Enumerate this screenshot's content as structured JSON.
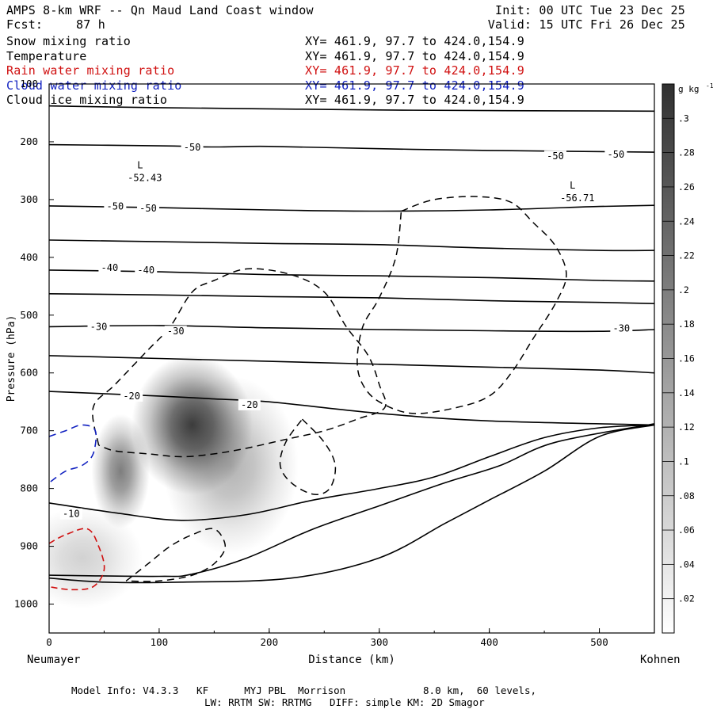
{
  "header": {
    "title": "AMPS 8-km WRF -- Qn Maud Land Coast window",
    "fcst_label": "Fcst:",
    "fcst_value": "87 h",
    "init": "Init: 00 UTC Tue 23 Dec 25",
    "valid": "Valid: 15 UTC Fri 26 Dec 25"
  },
  "fields": [
    {
      "name": "Snow mixing ratio",
      "xy": "XY= 461.9, 97.7 to 424.0,154.9",
      "color": "#000000"
    },
    {
      "name": "Temperature",
      "xy": "XY= 461.9, 97.7 to 424.0,154.9",
      "color": "#000000"
    },
    {
      "name": "Rain water mixing ratio",
      "xy": "XY= 461.9, 97.7 to 424.0,154.9",
      "color": "#d01010"
    },
    {
      "name": "Cloud water mixing ratio",
      "xy": "XY= 461.9, 97.7 to 424.0,154.9",
      "color": "#1020c0"
    },
    {
      "name": "Cloud ice mixing ratio",
      "xy": "XY= 461.9, 97.7 to 424.0,154.9",
      "color": "#000000"
    }
  ],
  "footer": {
    "line1": "Model Info: V4.3.3   KF      MYJ PBL  Morrison             8.0 km,  60 levels,",
    "line2": "LW: RRTM SW: RRTMG   DIFF: simple KM: 2D Smagor"
  },
  "chart_data": {
    "type": "heatmap",
    "xlabel": "Distance (km)",
    "ylabel": "Pressure (hPa)",
    "x_left_label": "Neumayer",
    "x_right_label": "Kohnen",
    "xlim": [
      0,
      550
    ],
    "ylim": [
      1050,
      100
    ],
    "x_ticks": [
      0,
      100,
      200,
      300,
      400,
      500
    ],
    "y_ticks": [
      100,
      200,
      300,
      400,
      500,
      600,
      700,
      800,
      900,
      1000
    ],
    "colorbar": {
      "unit": "g kg",
      "unit_exp": "-1",
      "ticks": [
        ".02",
        ".04",
        ".06",
        ".08",
        ".1",
        ".12",
        ".14",
        ".16",
        ".18",
        ".2",
        ".22",
        ".24",
        ".26",
        ".28",
        ".3"
      ],
      "tick_values": [
        0.02,
        0.04,
        0.06,
        0.08,
        0.1,
        0.12,
        0.14,
        0.16,
        0.18,
        0.2,
        0.22,
        0.24,
        0.26,
        0.28,
        0.3
      ],
      "range": [
        0,
        0.32
      ]
    },
    "snow_blobs": [
      {
        "x": 130,
        "p": 690,
        "sx": 25,
        "sp": 55,
        "value": 0.3
      },
      {
        "x": 65,
        "p": 770,
        "sx": 12,
        "sp": 45,
        "value": 0.2
      },
      {
        "x": 165,
        "p": 760,
        "sx": 28,
        "sp": 70,
        "value": 0.12
      },
      {
        "x": 30,
        "p": 920,
        "sx": 25,
        "sp": 40,
        "value": 0.07
      }
    ],
    "temperature_contours": [
      {
        "points": [
          [
            0,
            138
          ],
          [
            100,
            141
          ],
          [
            200,
            143
          ],
          [
            300,
            145
          ],
          [
            400,
            146
          ],
          [
            550,
            147
          ]
        ]
      },
      {
        "points": [
          [
            0,
            205
          ],
          [
            100,
            207
          ],
          [
            150,
            209
          ],
          [
            200,
            208
          ],
          [
            300,
            212
          ],
          [
            400,
            215
          ],
          [
            550,
            218
          ]
        ]
      },
      {
        "points": [
          [
            0,
            311
          ],
          [
            100,
            314
          ],
          [
            200,
            318
          ],
          [
            300,
            320
          ],
          [
            400,
            318
          ],
          [
            500,
            312
          ],
          [
            550,
            310
          ]
        ]
      },
      {
        "points": [
          [
            0,
            370
          ],
          [
            100,
            373
          ],
          [
            200,
            376
          ],
          [
            300,
            378
          ],
          [
            400,
            384
          ],
          [
            500,
            388
          ],
          [
            550,
            388
          ]
        ]
      },
      {
        "points": [
          [
            0,
            422
          ],
          [
            100,
            425
          ],
          [
            200,
            430
          ],
          [
            300,
            432
          ],
          [
            400,
            435
          ],
          [
            500,
            440
          ],
          [
            550,
            441
          ]
        ]
      },
      {
        "points": [
          [
            0,
            463
          ],
          [
            100,
            465
          ],
          [
            200,
            468
          ],
          [
            300,
            470
          ],
          [
            400,
            475
          ],
          [
            500,
            478
          ],
          [
            550,
            480
          ]
        ]
      },
      {
        "points": [
          [
            0,
            520
          ],
          [
            100,
            518
          ],
          [
            200,
            522
          ],
          [
            300,
            525
          ],
          [
            400,
            527
          ],
          [
            500,
            528
          ],
          [
            550,
            525
          ]
        ]
      },
      {
        "points": [
          [
            0,
            570
          ],
          [
            100,
            575
          ],
          [
            200,
            580
          ],
          [
            300,
            585
          ],
          [
            400,
            590
          ],
          [
            500,
            595
          ],
          [
            550,
            600
          ]
        ]
      },
      {
        "points": [
          [
            0,
            632
          ],
          [
            100,
            640
          ],
          [
            150,
            645
          ],
          [
            200,
            650
          ],
          [
            300,
            670
          ],
          [
            400,
            683
          ],
          [
            550,
            690
          ]
        ]
      },
      {
        "points": [
          [
            0,
            825
          ],
          [
            60,
            842
          ],
          [
            120,
            855
          ],
          [
            180,
            845
          ],
          [
            240,
            820
          ],
          [
            300,
            800
          ],
          [
            350,
            780
          ],
          [
            400,
            745
          ],
          [
            450,
            712
          ],
          [
            500,
            695
          ],
          [
            550,
            690
          ]
        ]
      },
      {
        "points": [
          [
            0,
            950
          ],
          [
            100,
            952
          ],
          [
            130,
            948
          ],
          [
            180,
            920
          ],
          [
            240,
            870
          ],
          [
            300,
            830
          ],
          [
            360,
            790
          ],
          [
            410,
            760
          ],
          [
            460,
            720
          ],
          [
            550,
            688
          ]
        ]
      },
      {
        "points": [
          [
            0,
            955
          ],
          [
            50,
            962
          ],
          [
            120,
            962
          ],
          [
            220,
            955
          ],
          [
            300,
            920
          ],
          [
            360,
            860
          ],
          [
            400,
            820
          ],
          [
            450,
            770
          ],
          [
            500,
            710
          ],
          [
            550,
            690
          ]
        ]
      }
    ],
    "temperature_labels": [
      {
        "x": 130,
        "p": 210,
        "text": "-50"
      },
      {
        "x": 460,
        "p": 225,
        "text": "-50"
      },
      {
        "x": 515,
        "p": 222,
        "text": "-50"
      },
      {
        "x": 60,
        "p": 312,
        "text": "-50"
      },
      {
        "x": 90,
        "p": 315,
        "text": "-50"
      },
      {
        "x": 55,
        "p": 418,
        "text": "-40"
      },
      {
        "x": 88,
        "p": 422,
        "text": "-40"
      },
      {
        "x": 45,
        "p": 520,
        "text": "-30"
      },
      {
        "x": 115,
        "p": 528,
        "text": "-30"
      },
      {
        "x": 520,
        "p": 523,
        "text": "-30"
      },
      {
        "x": 75,
        "p": 640,
        "text": "-20"
      },
      {
        "x": 182,
        "p": 655,
        "text": "-20"
      },
      {
        "x": 20,
        "p": 844,
        "text": "-10"
      }
    ],
    "low_centers": [
      {
        "x": 87,
        "p": 260,
        "label": "L",
        "value": "-52.43"
      },
      {
        "x": 480,
        "p": 295,
        "label": "L",
        "value": "-56.71"
      }
    ],
    "cloud_ice_contours": [
      {
        "points": [
          [
            45,
            725
          ],
          [
            40,
            660
          ],
          [
            60,
            620
          ],
          [
            90,
            560
          ],
          [
            110,
            520
          ],
          [
            130,
            460
          ],
          [
            150,
            440
          ],
          [
            180,
            420
          ],
          [
            220,
            430
          ],
          [
            250,
            460
          ],
          [
            270,
            520
          ],
          [
            290,
            570
          ],
          [
            300,
            620
          ],
          [
            305,
            660
          ],
          [
            280,
            680
          ],
          [
            250,
            700
          ],
          [
            215,
            715
          ],
          [
            180,
            730
          ],
          [
            150,
            740
          ],
          [
            120,
            745
          ],
          [
            90,
            740
          ],
          [
            60,
            735
          ],
          [
            45,
            725
          ]
        ]
      },
      {
        "points": [
          [
            320,
            320
          ],
          [
            350,
            300
          ],
          [
            390,
            295
          ],
          [
            420,
            305
          ],
          [
            440,
            340
          ],
          [
            460,
            380
          ],
          [
            470,
            430
          ],
          [
            460,
            480
          ],
          [
            440,
            540
          ],
          [
            420,
            600
          ],
          [
            400,
            640
          ],
          [
            370,
            660
          ],
          [
            330,
            670
          ],
          [
            300,
            650
          ],
          [
            285,
            620
          ],
          [
            280,
            580
          ],
          [
            285,
            520
          ],
          [
            300,
            470
          ],
          [
            315,
            400
          ],
          [
            320,
            320
          ]
        ]
      },
      {
        "points": [
          [
            230,
            680
          ],
          [
            250,
            720
          ],
          [
            260,
            760
          ],
          [
            255,
            800
          ],
          [
            240,
            810
          ],
          [
            220,
            790
          ],
          [
            210,
            760
          ],
          [
            215,
            720
          ],
          [
            230,
            680
          ]
        ]
      },
      {
        "points": [
          [
            70,
            960
          ],
          [
            90,
            930
          ],
          [
            110,
            900
          ],
          [
            130,
            880
          ],
          [
            150,
            870
          ],
          [
            160,
            900
          ],
          [
            150,
            930
          ],
          [
            130,
            950
          ],
          [
            100,
            960
          ],
          [
            70,
            960
          ]
        ]
      }
    ],
    "cloud_water_contours": [
      {
        "points": [
          [
            0,
            710
          ],
          [
            15,
            700
          ],
          [
            30,
            690
          ],
          [
            42,
            700
          ],
          [
            40,
            740
          ],
          [
            30,
            760
          ],
          [
            15,
            770
          ],
          [
            0,
            790
          ]
        ]
      }
    ],
    "rain_water_contours": [
      {
        "points": [
          [
            0,
            895
          ],
          [
            15,
            880
          ],
          [
            35,
            870
          ],
          [
            45,
            900
          ],
          [
            50,
            940
          ],
          [
            40,
            970
          ],
          [
            20,
            975
          ],
          [
            0,
            970
          ]
        ]
      }
    ]
  }
}
